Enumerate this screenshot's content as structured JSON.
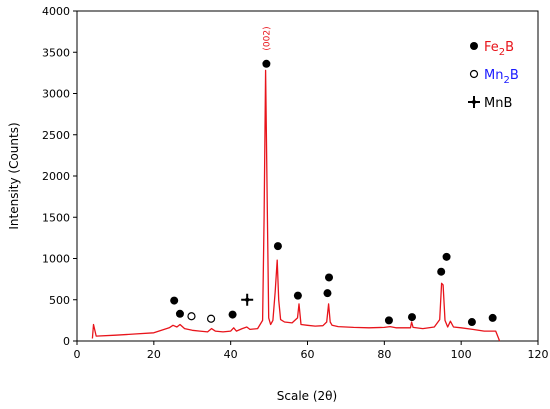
{
  "chart_data": {
    "type": "line",
    "xlabel": "Scale (2θ)",
    "ylabel": "Intensity (Counts)",
    "xlim": [
      0,
      120
    ],
    "ylim": [
      0,
      4000
    ],
    "xticks": [
      0,
      20,
      40,
      60,
      80,
      100,
      120
    ],
    "yticks": [
      0,
      500,
      1000,
      1500,
      2000,
      2500,
      3000,
      3500,
      4000
    ],
    "grid": false,
    "legend_position": "top-right",
    "line_color": "#e8141b",
    "series": [
      {
        "x": [
          4.0,
          4.3,
          5.0,
          10.0,
          15.0,
          20.0,
          22.0,
          24.0,
          25.0,
          26.0,
          26.8,
          28.0,
          30.0,
          32.0,
          34.0,
          35.0,
          36.0,
          38.0,
          40.0,
          40.8,
          41.5,
          43.0,
          44.2,
          45.0,
          47.0,
          48.3,
          48.7,
          49.1,
          49.5,
          49.9,
          50.4,
          51.0,
          51.6,
          52.1,
          52.5,
          53.0,
          54.0,
          56.0,
          57.4,
          57.8,
          58.3,
          60.0,
          62.0,
          64.0,
          65.0,
          65.5,
          65.9,
          66.4,
          68.0,
          72.0,
          76.0,
          80.0,
          81.5,
          83.0,
          86.8,
          87.1,
          87.5,
          90.0,
          93.0,
          94.4,
          94.9,
          95.3,
          95.8,
          96.5,
          97.2,
          98.0,
          100.0,
          103.0,
          106.0,
          108.5,
          109.0,
          109.5,
          110.0
        ],
        "y": [
          30,
          200,
          60,
          70,
          85,
          100,
          130,
          160,
          190,
          170,
          200,
          150,
          130,
          120,
          110,
          150,
          120,
          110,
          120,
          160,
          120,
          150,
          170,
          140,
          150,
          250,
          1500,
          3280,
          1700,
          280,
          200,
          250,
          600,
          980,
          500,
          260,
          230,
          220,
          280,
          450,
          200,
          190,
          180,
          185,
          230,
          450,
          230,
          190,
          175,
          165,
          160,
          165,
          175,
          160,
          160,
          230,
          165,
          150,
          170,
          260,
          700,
          680,
          250,
          170,
          240,
          170,
          160,
          140,
          120,
          120,
          120,
          60,
          0
        ]
      }
    ],
    "peak_annotations": [
      "(002)"
    ],
    "legend": [
      {
        "phase": "Fe",
        "sub": "2",
        "suffix": "B",
        "marker": "filled-circle",
        "color": "#e8141b"
      },
      {
        "phase": "Mn",
        "sub": "2",
        "suffix": "B",
        "marker": "open-circle",
        "color": "#1a1aff"
      },
      {
        "phase": "MnB",
        "sub": "",
        "suffix": "",
        "marker": "plus-star",
        "color": "#000000"
      }
    ],
    "phase_markers": [
      {
        "phase": "Fe2B",
        "marker": "filled-circle",
        "points": [
          [
            25.3,
            490
          ],
          [
            26.8,
            330
          ],
          [
            40.5,
            320
          ],
          [
            49.3,
            3360
          ],
          [
            52.3,
            1150
          ],
          [
            57.5,
            550
          ],
          [
            65.2,
            580
          ],
          [
            65.6,
            770
          ],
          [
            81.2,
            250
          ],
          [
            87.2,
            290
          ],
          [
            94.8,
            840
          ],
          [
            96.2,
            1020
          ],
          [
            102.8,
            230
          ],
          [
            108.2,
            280
          ]
        ]
      },
      {
        "phase": "Mn2B",
        "marker": "open-circle",
        "points": [
          [
            29.8,
            300
          ],
          [
            34.9,
            270
          ]
        ]
      },
      {
        "phase": "MnB",
        "marker": "plus-star",
        "points": [
          [
            44.3,
            500
          ]
        ]
      }
    ]
  }
}
